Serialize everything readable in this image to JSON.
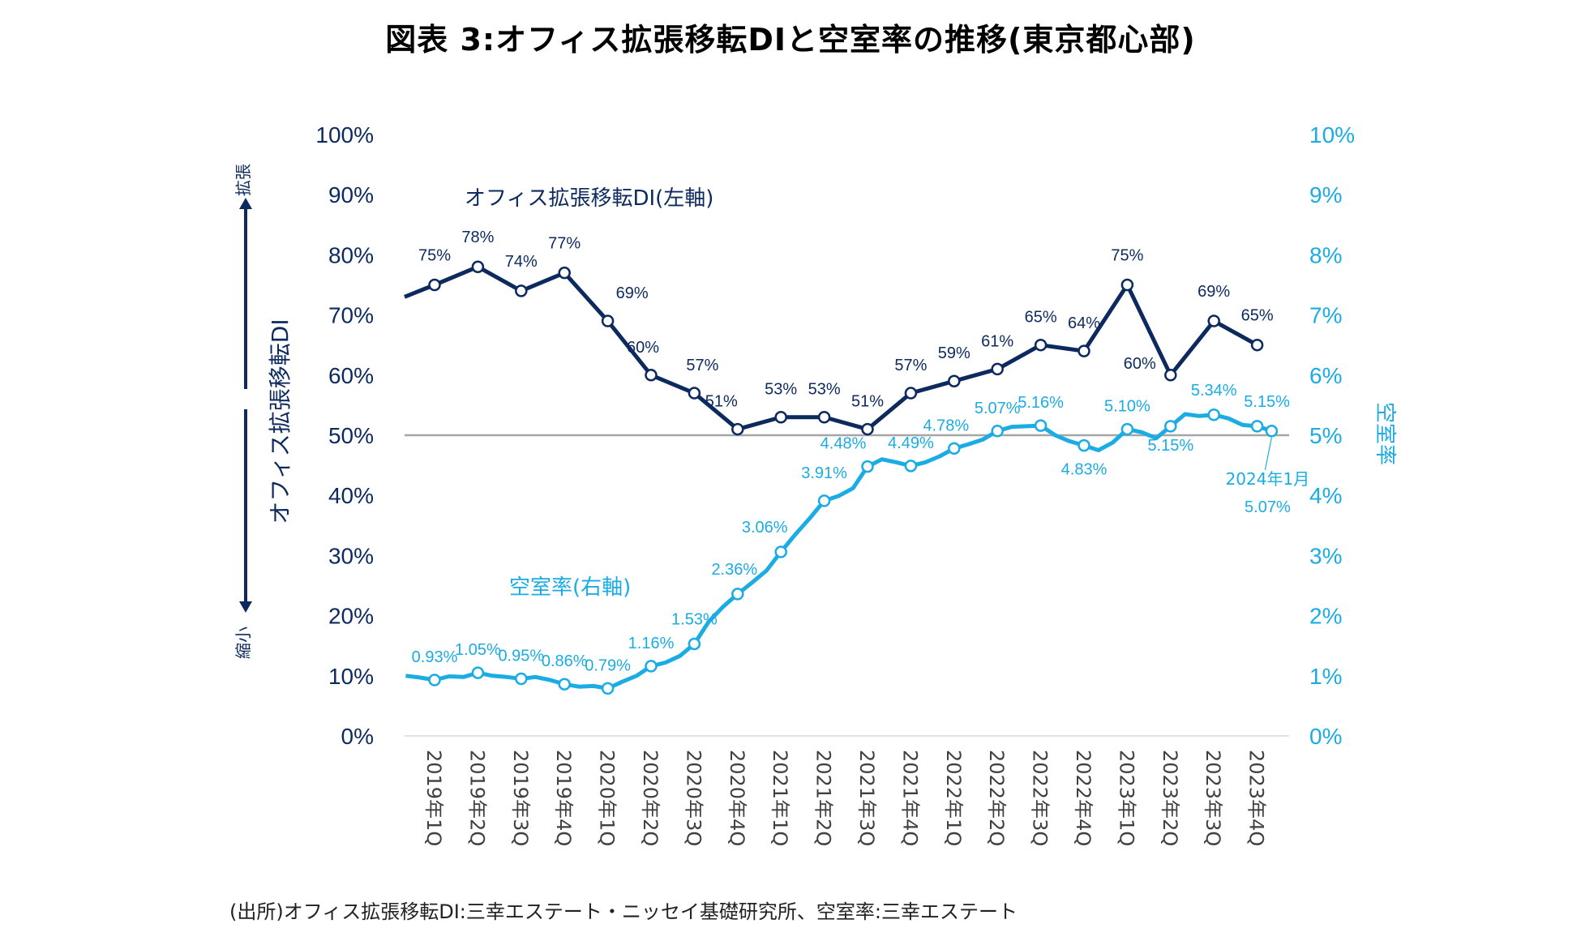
{
  "title": "図表 3:オフィス拡張移転DIと空室率の推移(東京都心部)",
  "source": "(出所)オフィス拡張移転DI:三幸エステート・ニッセイ基礎研究所、空室率:三幸エステート",
  "colors": {
    "di": "#0d2a5e",
    "vacancy": "#1aace3",
    "ref_line": "#a6a6a6",
    "text_dark": "#0d2a5e"
  },
  "left_axis_side_label": "オフィス拡張移転DI",
  "arrow_up_label": "拡張",
  "arrow_down_label": "縮小",
  "right_axis_side_label": "空室率",
  "chart_data": {
    "type": "line",
    "title": "図表 3:オフィス拡張移転DIと空室率の推移(東京都心部)",
    "categories": [
      "2019年1Q",
      "2019年2Q",
      "2019年3Q",
      "2019年4Q",
      "2020年1Q",
      "2020年2Q",
      "2020年3Q",
      "2020年4Q",
      "2021年1Q",
      "2021年2Q",
      "2021年3Q",
      "2021年4Q",
      "2022年1Q",
      "2022年2Q",
      "2022年3Q",
      "2022年4Q",
      "2023年1Q",
      "2023年2Q",
      "2023年3Q",
      "2023年4Q"
    ],
    "left_axis": {
      "label": "オフィス拡張移転DI",
      "ylim": [
        0,
        100
      ],
      "ticks": [
        "0%",
        "10%",
        "20%",
        "30%",
        "40%",
        "50%",
        "60%",
        "70%",
        "80%",
        "90%",
        "100%"
      ]
    },
    "right_axis": {
      "label": "空室率",
      "ylim": [
        0,
        10
      ],
      "ticks": [
        "0%",
        "1%",
        "2%",
        "3%",
        "4%",
        "5%",
        "6%",
        "7%",
        "8%",
        "9%",
        "10%"
      ]
    },
    "reference_line": {
      "axis": "left",
      "value": 50
    },
    "series": [
      {
        "name": "オフィス拡張移転DI(左軸)",
        "axis": "left",
        "start_value": 73,
        "values": [
          75,
          78,
          74,
          77,
          69,
          60,
          57,
          51,
          53,
          53,
          51,
          57,
          59,
          61,
          65,
          64,
          75,
          60,
          69,
          65
        ],
        "labels": [
          "75%",
          "78%",
          "74%",
          "77%",
          "69%",
          "60%",
          "57%",
          "51%",
          "53%",
          "53%",
          "51%",
          "57%",
          "59%",
          "61%",
          "65%",
          "64%",
          "75%",
          "60%",
          "69%",
          "65%"
        ]
      },
      {
        "name": "空室率(右軸)",
        "axis": "right",
        "monthly_values": [
          1.0,
          0.97,
          0.93,
          0.99,
          0.98,
          1.05,
          1.0,
          0.98,
          0.95,
          0.98,
          0.93,
          0.86,
          0.82,
          0.83,
          0.79,
          0.9,
          1.0,
          1.16,
          1.22,
          1.33,
          1.53,
          1.9,
          2.15,
          2.36,
          2.55,
          2.75,
          3.06,
          3.35,
          3.62,
          3.91,
          3.99,
          4.12,
          4.48,
          4.6,
          4.55,
          4.49,
          4.55,
          4.65,
          4.78,
          4.85,
          4.93,
          5.07,
          5.14,
          5.15,
          5.16,
          5.0,
          4.9,
          4.83,
          4.75,
          4.88,
          5.1,
          5.05,
          4.95,
          5.15,
          5.35,
          5.32,
          5.34,
          5.28,
          5.17,
          5.15,
          5.07
        ],
        "quarter_values": [
          0.93,
          1.05,
          0.95,
          0.86,
          0.79,
          1.16,
          1.53,
          2.36,
          3.06,
          3.91,
          4.48,
          4.49,
          4.78,
          5.07,
          5.16,
          4.83,
          5.1,
          5.15,
          5.34,
          5.15
        ],
        "labels": [
          "0.93%",
          "1.05%",
          "0.95%",
          "0.86%",
          "0.79%",
          "1.16%",
          "1.53%",
          "2.36%",
          "3.06%",
          "3.91%",
          "4.48%",
          "4.49%",
          "4.78%",
          "5.07%",
          "5.16%",
          "4.83%",
          "5.10%",
          "5.15%",
          "5.34%",
          "5.15%"
        ],
        "latest": {
          "label": "2024年1月",
          "value": 5.07,
          "value_label": "5.07%"
        }
      }
    ],
    "annotations": [
      "オフィス拡張移転DI(左軸)",
      "空室率(右軸)",
      "2024年1月 5.07%"
    ],
    "legend": "inline"
  }
}
